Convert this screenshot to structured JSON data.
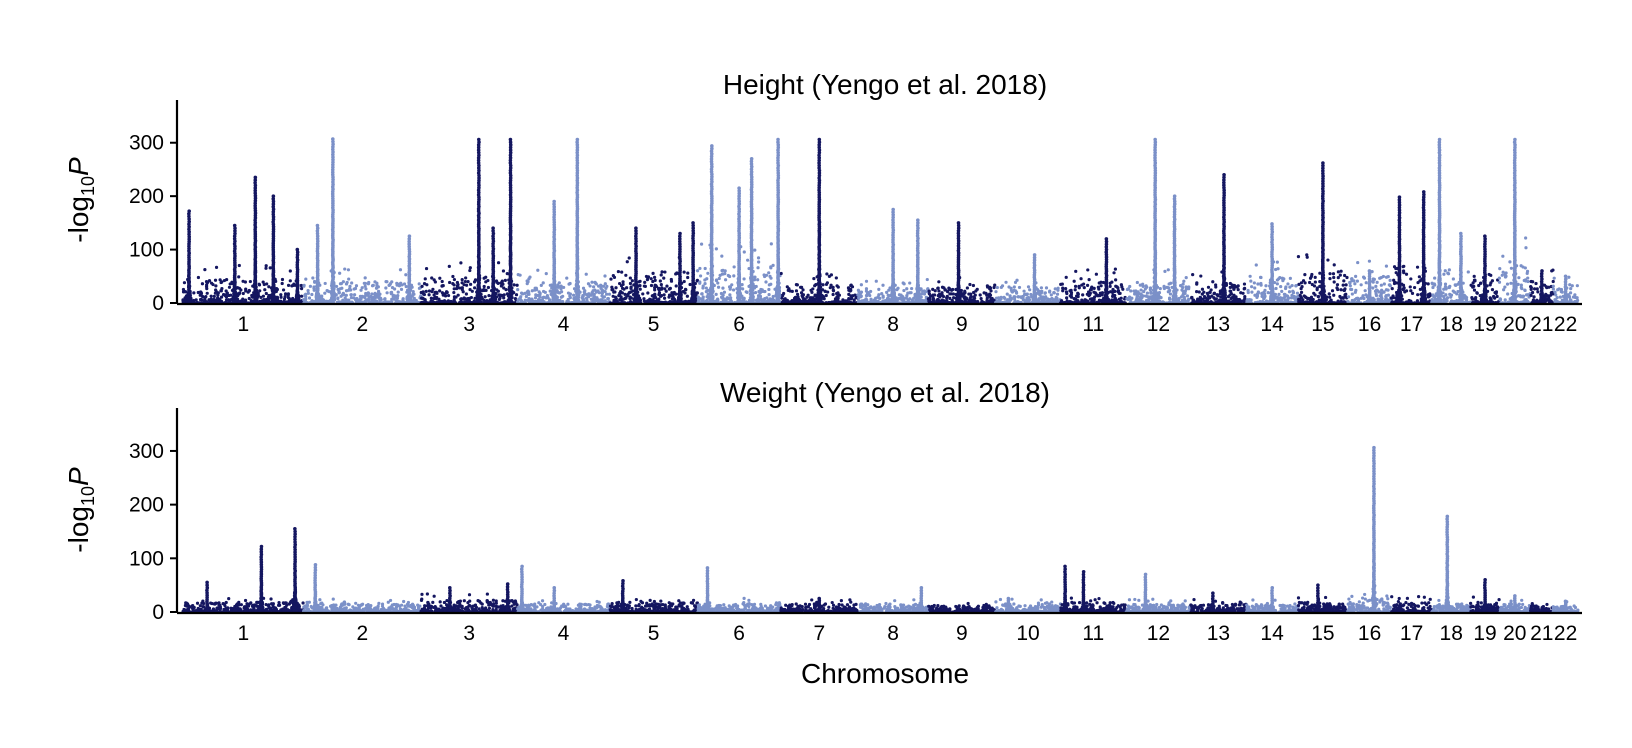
{
  "chart_data": [
    {
      "type": "scatter",
      "subtype": "manhattan",
      "title": "Height (Yengo et al. 2018)",
      "ylabel_main": "-log",
      "ylabel_sub": "10",
      "ylabel_var": "P",
      "ylim": [
        0,
        380
      ],
      "yticks": [
        0,
        100,
        200,
        300
      ],
      "colors": [
        "#141660",
        "#7b90c8"
      ],
      "chromosomes": [
        "1",
        "2",
        "3",
        "4",
        "5",
        "6",
        "7",
        "8",
        "9",
        "10",
        "11",
        "12",
        "13",
        "14",
        "15",
        "16",
        "17",
        "18",
        "19",
        "20",
        "21",
        "22"
      ],
      "x_labels": [
        "1",
        "2",
        "3",
        "4",
        "5",
        "6",
        "7",
        "8",
        "9",
        "10",
        "11",
        "12",
        "13",
        "14",
        "15",
        "16",
        "17",
        "18",
        "19",
        "20",
        "21",
        "22"
      ],
      "chrom_lengths": [
        248,
        242,
        198,
        190,
        181,
        171,
        159,
        145,
        138,
        134,
        135,
        133,
        114,
        107,
        102,
        90,
        83,
        80,
        59,
        64,
        47,
        51
      ],
      "baseline": [
        45,
        40,
        50,
        40,
        60,
        70,
        35,
        30,
        30,
        30,
        40,
        40,
        40,
        50,
        60,
        50,
        70,
        40,
        50,
        80,
        40,
        35
      ],
      "peaks": [
        {
          "chrom": "1",
          "pos": 0.05,
          "value": 172
        },
        {
          "chrom": "1",
          "pos": 0.43,
          "value": 145
        },
        {
          "chrom": "1",
          "pos": 0.6,
          "value": 235
        },
        {
          "chrom": "1",
          "pos": 0.75,
          "value": 200
        },
        {
          "chrom": "1",
          "pos": 0.95,
          "value": 100
        },
        {
          "chrom": "2",
          "pos": 0.12,
          "value": 145
        },
        {
          "chrom": "2",
          "pos": 0.25,
          "value": 307
        },
        {
          "chrom": "2",
          "pos": 0.9,
          "value": 125
        },
        {
          "chrom": "3",
          "pos": 0.6,
          "value": 306
        },
        {
          "chrom": "3",
          "pos": 0.75,
          "value": 140
        },
        {
          "chrom": "3",
          "pos": 0.93,
          "value": 306
        },
        {
          "chrom": "4",
          "pos": 0.4,
          "value": 190
        },
        {
          "chrom": "4",
          "pos": 0.65,
          "value": 306
        },
        {
          "chrom": "5",
          "pos": 0.3,
          "value": 140
        },
        {
          "chrom": "5",
          "pos": 0.8,
          "value": 130
        },
        {
          "chrom": "5",
          "pos": 0.95,
          "value": 150
        },
        {
          "chrom": "6",
          "pos": 0.17,
          "value": 294
        },
        {
          "chrom": "6",
          "pos": 0.5,
          "value": 215
        },
        {
          "chrom": "6",
          "pos": 0.65,
          "value": 270
        },
        {
          "chrom": "6",
          "pos": 0.97,
          "value": 306
        },
        {
          "chrom": "7",
          "pos": 0.5,
          "value": 306
        },
        {
          "chrom": "8",
          "pos": 0.5,
          "value": 175
        },
        {
          "chrom": "8",
          "pos": 0.85,
          "value": 155
        },
        {
          "chrom": "9",
          "pos": 0.45,
          "value": 150
        },
        {
          "chrom": "10",
          "pos": 0.6,
          "value": 90
        },
        {
          "chrom": "11",
          "pos": 0.7,
          "value": 120
        },
        {
          "chrom": "12",
          "pos": 0.45,
          "value": 306
        },
        {
          "chrom": "12",
          "pos": 0.75,
          "value": 200
        },
        {
          "chrom": "13",
          "pos": 0.6,
          "value": 240
        },
        {
          "chrom": "14",
          "pos": 0.5,
          "value": 148
        },
        {
          "chrom": "15",
          "pos": 0.5,
          "value": 262
        },
        {
          "chrom": "16",
          "pos": 0.5,
          "value": 60
        },
        {
          "chrom": "17",
          "pos": 0.2,
          "value": 198
        },
        {
          "chrom": "17",
          "pos": 0.8,
          "value": 208
        },
        {
          "chrom": "18",
          "pos": 0.2,
          "value": 306
        },
        {
          "chrom": "18",
          "pos": 0.75,
          "value": 130
        },
        {
          "chrom": "19",
          "pos": 0.5,
          "value": 125
        },
        {
          "chrom": "20",
          "pos": 0.5,
          "value": 306
        },
        {
          "chrom": "21",
          "pos": 0.5,
          "value": 60
        },
        {
          "chrom": "22",
          "pos": 0.5,
          "value": 50
        }
      ]
    },
    {
      "type": "scatter",
      "subtype": "manhattan",
      "title": "Weight (Yengo et al. 2018)",
      "ylabel_main": "-log",
      "ylabel_sub": "10",
      "ylabel_var": "P",
      "xlabel": "Chromosome",
      "ylim": [
        0,
        380
      ],
      "yticks": [
        0,
        100,
        200,
        300
      ],
      "colors": [
        "#141660",
        "#7b90c8"
      ],
      "chromosomes": [
        "1",
        "2",
        "3",
        "4",
        "5",
        "6",
        "7",
        "8",
        "9",
        "10",
        "11",
        "12",
        "13",
        "14",
        "15",
        "16",
        "17",
        "18",
        "19",
        "20",
        "21",
        "22"
      ],
      "x_labels": [
        "1",
        "2",
        "3",
        "4",
        "5",
        "6",
        "7",
        "8",
        "9",
        "10",
        "11",
        "12",
        "13",
        "14",
        "15",
        "16",
        "17",
        "18",
        "19",
        "20",
        "21",
        "22"
      ],
      "chrom_lengths": [
        248,
        242,
        198,
        190,
        181,
        171,
        159,
        145,
        138,
        134,
        135,
        133,
        114,
        107,
        102,
        90,
        83,
        80,
        59,
        64,
        47,
        51
      ],
      "baseline": [
        18,
        15,
        22,
        15,
        18,
        16,
        15,
        15,
        12,
        15,
        18,
        15,
        15,
        15,
        18,
        25,
        18,
        15,
        18,
        15,
        12,
        12
      ],
      "peaks": [
        {
          "chrom": "1",
          "pos": 0.2,
          "value": 55
        },
        {
          "chrom": "1",
          "pos": 0.65,
          "value": 122
        },
        {
          "chrom": "1",
          "pos": 0.93,
          "value": 155
        },
        {
          "chrom": "2",
          "pos": 0.1,
          "value": 88
        },
        {
          "chrom": "3",
          "pos": 0.3,
          "value": 45
        },
        {
          "chrom": "3",
          "pos": 0.9,
          "value": 52
        },
        {
          "chrom": "4",
          "pos": 0.05,
          "value": 85
        },
        {
          "chrom": "4",
          "pos": 0.4,
          "value": 45
        },
        {
          "chrom": "5",
          "pos": 0.15,
          "value": 58
        },
        {
          "chrom": "6",
          "pos": 0.12,
          "value": 82
        },
        {
          "chrom": "7",
          "pos": 0.5,
          "value": 25
        },
        {
          "chrom": "8",
          "pos": 0.9,
          "value": 45
        },
        {
          "chrom": "10",
          "pos": 0.2,
          "value": 25
        },
        {
          "chrom": "11",
          "pos": 0.07,
          "value": 85
        },
        {
          "chrom": "11",
          "pos": 0.35,
          "value": 75
        },
        {
          "chrom": "12",
          "pos": 0.3,
          "value": 70
        },
        {
          "chrom": "13",
          "pos": 0.4,
          "value": 35
        },
        {
          "chrom": "14",
          "pos": 0.5,
          "value": 45
        },
        {
          "chrom": "15",
          "pos": 0.4,
          "value": 50
        },
        {
          "chrom": "16",
          "pos": 0.6,
          "value": 306
        },
        {
          "chrom": "18",
          "pos": 0.4,
          "value": 178
        },
        {
          "chrom": "19",
          "pos": 0.5,
          "value": 60
        },
        {
          "chrom": "20",
          "pos": 0.5,
          "value": 30
        },
        {
          "chrom": "22",
          "pos": 0.5,
          "value": 20
        }
      ]
    }
  ]
}
